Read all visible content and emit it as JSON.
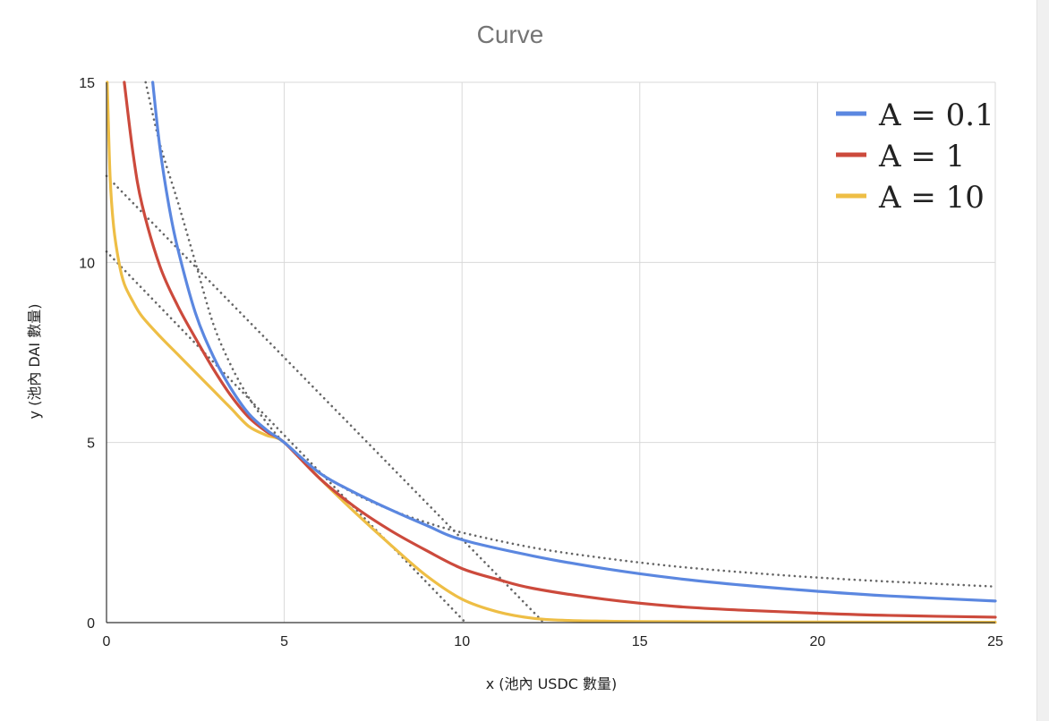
{
  "chart_data": {
    "type": "line",
    "title": "Curve",
    "xlabel": "x (池內 USDC 數量)",
    "ylabel": "y (池內 DAI 數量)",
    "xlim": [
      0,
      25
    ],
    "ylim": [
      0,
      15
    ],
    "xticks": [
      "0",
      "5",
      "10",
      "15",
      "20",
      "25"
    ],
    "yticks": [
      "0",
      "5",
      "10",
      "15"
    ],
    "grid": true,
    "legend_position": "top-right",
    "series": [
      {
        "name": "A = 0.1",
        "legend_label": "A = 0.1",
        "color": "#5b87e0",
        "style": "solid",
        "x": [
          1.3,
          1.5,
          1.75,
          2,
          2.5,
          3,
          3.5,
          4,
          4.5,
          5,
          6,
          7,
          8,
          9,
          10,
          12,
          14,
          16,
          18,
          20,
          22,
          25
        ],
        "y": [
          15.0,
          13.2,
          11.6,
          10.4,
          8.6,
          7.4,
          6.5,
          5.8,
          5.35,
          5.0,
          4.15,
          3.6,
          3.13,
          2.7,
          2.3,
          1.85,
          1.5,
          1.23,
          1.03,
          0.87,
          0.74,
          0.6
        ]
      },
      {
        "name": "A = 1",
        "legend_label": "A = 1",
        "color": "#cc4a3c",
        "style": "solid",
        "x": [
          0.5,
          0.75,
          1,
          1.5,
          2,
          2.5,
          3,
          3.5,
          4,
          4.5,
          5,
          6,
          7,
          8,
          9,
          10,
          11,
          12,
          14,
          16,
          18,
          20,
          22,
          25
        ],
        "y": [
          15.0,
          13.0,
          11.6,
          9.9,
          8.8,
          7.9,
          7.05,
          6.3,
          5.7,
          5.3,
          5.0,
          4.0,
          3.2,
          2.55,
          2.0,
          1.5,
          1.2,
          0.95,
          0.65,
          0.45,
          0.34,
          0.26,
          0.2,
          0.15
        ]
      },
      {
        "name": "A = 10",
        "legend_label": "A = 10",
        "color": "#eebe45",
        "style": "solid",
        "x": [
          0.02,
          0.1,
          0.2,
          0.35,
          0.5,
          0.75,
          1,
          1.5,
          2,
          2.5,
          3,
          3.5,
          4,
          4.5,
          5,
          6,
          7,
          8,
          9,
          10,
          11,
          12,
          13,
          14,
          15,
          17,
          20,
          25
        ],
        "y": [
          15.0,
          12.4,
          11.0,
          10.0,
          9.4,
          8.9,
          8.5,
          7.95,
          7.45,
          6.95,
          6.45,
          5.95,
          5.45,
          5.2,
          5.0,
          4.0,
          3.05,
          2.15,
          1.3,
          0.65,
          0.3,
          0.12,
          0.06,
          0.04,
          0.03,
          0.02,
          0.015,
          0.01
        ]
      },
      {
        "name": "",
        "color": "#666666",
        "style": "dotted",
        "x": [
          1.1,
          1.5,
          2,
          2.5,
          3,
          3.5,
          4,
          4.5,
          5,
          6,
          7,
          8,
          9,
          10,
          12,
          14,
          16,
          18,
          20,
          22,
          25
        ],
        "y": [
          15.0,
          13.3,
          11.7,
          10.0,
          8.3,
          7.14,
          6.25,
          5.56,
          5.0,
          4.17,
          3.57,
          3.13,
          2.78,
          2.5,
          2.08,
          1.79,
          1.56,
          1.39,
          1.25,
          1.14,
          1.0
        ]
      },
      {
        "name": "",
        "color": "#666666",
        "style": "dotted",
        "x": [
          0,
          12.3
        ],
        "y": [
          12.4,
          0
        ]
      },
      {
        "name": "",
        "color": "#666666",
        "style": "dotted",
        "x": [
          0,
          10.1
        ],
        "y": [
          10.3,
          0
        ]
      }
    ]
  }
}
